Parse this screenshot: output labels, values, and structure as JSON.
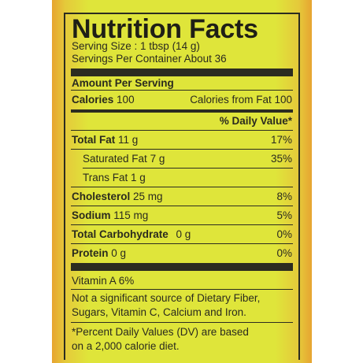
{
  "label": {
    "title": "Nutrition Facts",
    "serving_size": "Serving Size : 1 tbsp (14 g)",
    "servings_per_container": "Servings Per Container About 36",
    "amount_per_serving": "Amount Per Serving",
    "calories_label": "Calories",
    "calories_value": "100",
    "calories_from_fat": "Calories from Fat 100",
    "daily_value_header": "% Daily Value*",
    "rows": [
      {
        "name": "Total Fat",
        "amount": "11 g",
        "dv": "17%"
      },
      {
        "name": "Saturated Fat",
        "amount": "7 g",
        "dv": "35%"
      },
      {
        "name": "Trans Fat",
        "amount": "1 g",
        "dv": ""
      },
      {
        "name": "Cholesterol",
        "amount": "25 mg",
        "dv": "8%"
      },
      {
        "name": "Sodium",
        "amount": "115 mg",
        "dv": "5%"
      },
      {
        "name": "Total Carbohydrate",
        "amount": "0 g",
        "dv": "0%"
      },
      {
        "name": "Protein",
        "amount": "0 g",
        "dv": "0%"
      }
    ],
    "vitamin_a": "Vitamin A 6%",
    "note_line1": "Not a significant source of Dietary Fiber,",
    "note_line2": "Sugars, Vitamin C, Calcium and Iron.",
    "footnote_line1": "*Percent Daily Values (DV) are based",
    "footnote_line2": "on a 2,000 calorie diet."
  },
  "colors": {
    "label_yellow": "#dfe53a",
    "edge_orange": "#e7a431",
    "ink": "#2c2c20"
  }
}
